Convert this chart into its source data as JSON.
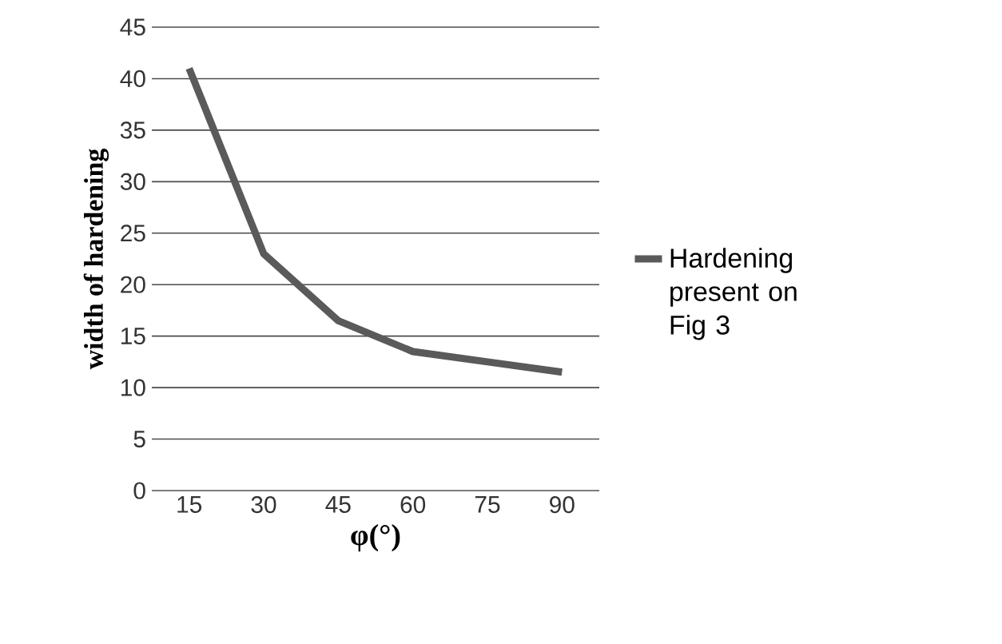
{
  "chart_data": {
    "type": "line",
    "xlabel": "φ(°)",
    "ylabel": "width of hardening",
    "categories": [
      "15",
      "30",
      "45",
      "60",
      "75",
      "90"
    ],
    "series": [
      {
        "name": "Hardening present on Fig 3",
        "color": "#5a5a5a",
        "values": [
          41,
          23,
          16.5,
          13.5,
          12.5,
          11.5
        ]
      }
    ],
    "ylim": [
      0,
      45
    ],
    "yticks": [
      0,
      5,
      10,
      15,
      20,
      25,
      30,
      35,
      40,
      45
    ],
    "grid": "y",
    "legend": "right",
    "marker": "none",
    "line_style": "solid"
  }
}
